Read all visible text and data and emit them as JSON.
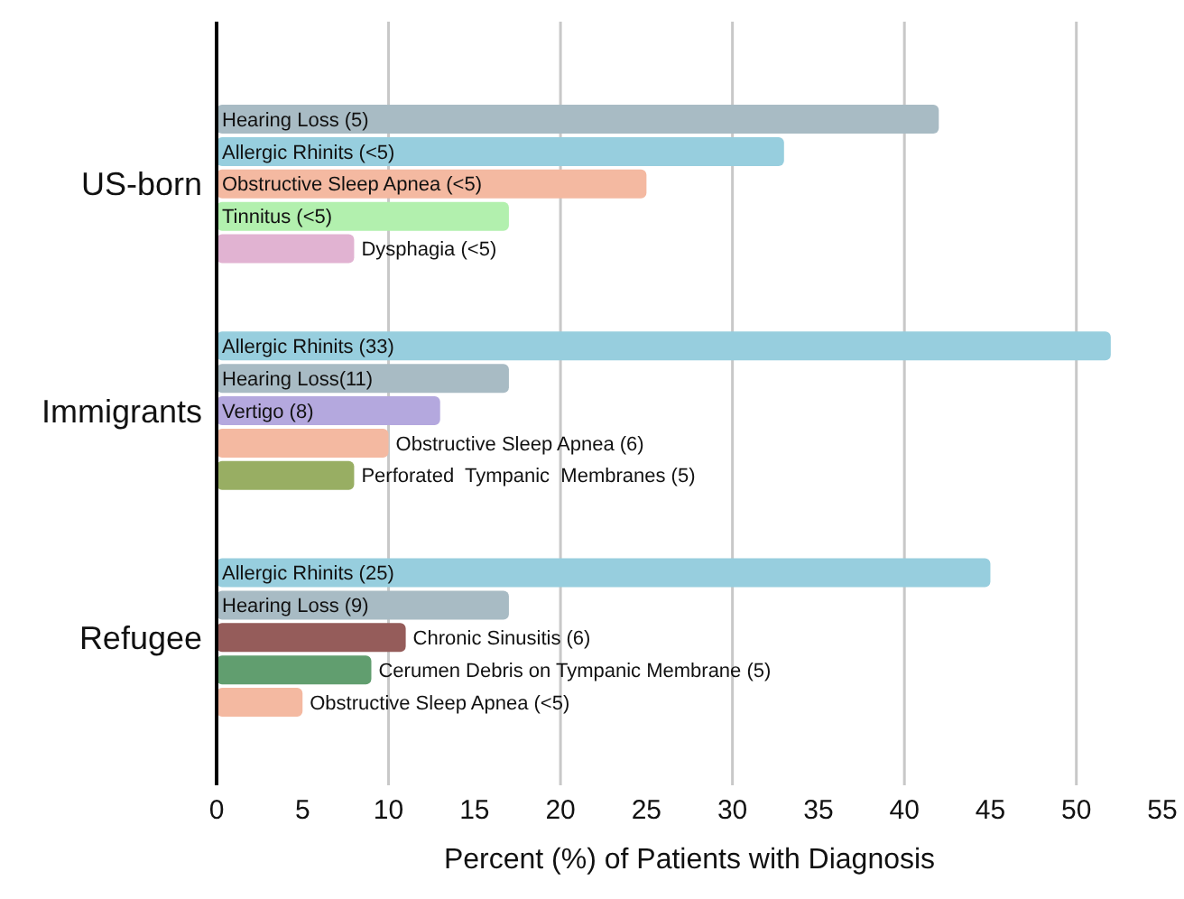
{
  "chart_data": {
    "type": "bar",
    "orientation": "horizontal",
    "xlabel": "Percent (%) of Patients with Diagnosis",
    "categories": [
      "Hearing Loss (5)",
      "Allergic Rhinits (<5)",
      "Obstructive Sleep Apnea (<5)",
      "Tinnitus (<5)",
      "Dysphagia (<5)",
      null,
      null,
      "Allergic Rhinits (33)",
      "Hearing Loss(11)",
      "Vertigo (8)",
      "Obstructive Sleep Apnea (6)",
      "Perforated  Tympanic  Membranes (5)",
      null,
      null,
      "Allergic Rhinits (25)",
      "Hearing Loss (9)",
      "Chronic Sinusitis (6)",
      "Cerumen Debris on Tympanic Membrane (5)",
      "Obstructive Sleep Apnea (<5)"
    ],
    "values": [
      42,
      33,
      25,
      17,
      8,
      null,
      null,
      52,
      17,
      13,
      10,
      8,
      null,
      null,
      45,
      17,
      11,
      9,
      5
    ],
    "colors": [
      "#a8bbc4",
      "#97cede",
      "#f4b9a1",
      "#b2f0ae",
      "#e1b3d2",
      null,
      null,
      "#97cede",
      "#a8bbc4",
      "#b4a8de",
      "#f4b9a1",
      "#98ae63",
      null,
      null,
      "#97cede",
      "#a8bbc4",
      "#955c5a",
      "#619e6f",
      "#f4b9a1"
    ],
    "annotations": [
      "US-born",
      "Immigrants",
      "Refugee"
    ],
    "xlim": [
      0,
      55
    ],
    "xticks": [
      0,
      5,
      10,
      15,
      20,
      25,
      30,
      35,
      40,
      45,
      50,
      55
    ],
    "grid": "x",
    "legend": false
  }
}
